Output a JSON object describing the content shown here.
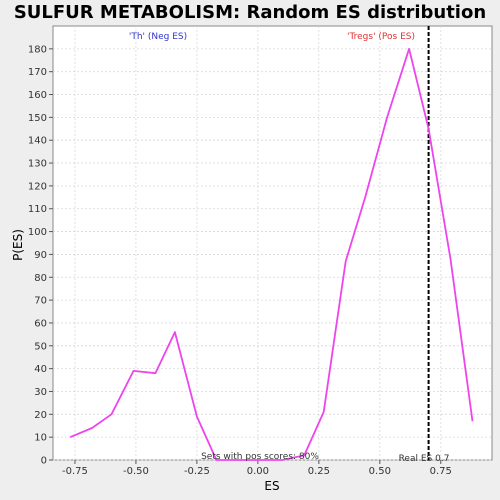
{
  "chart_data": {
    "type": "line",
    "title": "SULFUR METABOLISM: Random ES distribution",
    "xlabel": "ES",
    "ylabel": "P(ES)",
    "xlim": [
      -0.84,
      0.96
    ],
    "ylim": [
      0,
      190
    ],
    "x_ticks": [
      -0.75,
      -0.5,
      -0.25,
      0.0,
      0.25,
      0.5,
      0.75
    ],
    "x_tick_labels": [
      "-0.75",
      "-0.50",
      "-0.25",
      "0.00",
      "0.25",
      "0.50",
      "0.75"
    ],
    "y_ticks": [
      0,
      10,
      20,
      30,
      40,
      50,
      60,
      70,
      80,
      90,
      100,
      110,
      120,
      130,
      140,
      150,
      160,
      170,
      180
    ],
    "grid": true,
    "series": [
      {
        "color": "#ee44ee",
        "x": [
          -0.77,
          -0.68,
          -0.6,
          -0.51,
          -0.42,
          -0.34,
          -0.25,
          -0.17,
          -0.08,
          0.0,
          0.1,
          0.19,
          0.27,
          0.36,
          0.44,
          0.53,
          0.62,
          0.7,
          0.79,
          0.88
        ],
        "y": [
          10,
          14,
          20,
          39,
          38,
          56,
          19,
          0,
          0,
          0,
          0,
          2,
          21,
          87,
          115,
          150,
          180,
          145,
          88,
          17
        ]
      }
    ],
    "reference_line": {
      "x": 0.7,
      "color": "#000000",
      "style": "dashed",
      "label": "Real ES 0.7"
    },
    "annotations": {
      "neg_label": "'Th' (Neg ES)",
      "neg_color": "#3333cc",
      "pos_label": "'Tregs' (Pos ES)",
      "pos_color": "#dd3333",
      "bottom_note": "Sets with pos scores: 80%"
    }
  }
}
